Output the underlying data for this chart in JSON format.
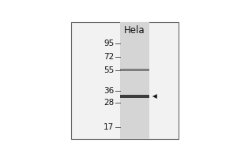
{
  "bg_color": "#ffffff",
  "outer_bg": "#f5f5f5",
  "lane_color_light": "#e0e0e0",
  "lane_color_dark": "#c8c8c8",
  "mw_markers": [
    95,
    72,
    55,
    36,
    28,
    17
  ],
  "lane_label": "Hela",
  "text_color": "#111111",
  "font_size": 7.5,
  "label_font_size": 8.5,
  "band_55_mw": 55,
  "band_32_mw": 32,
  "band_color_55": "#444444",
  "band_color_32": "#222222",
  "band_alpha_55": 0.6,
  "band_alpha_32": 0.85,
  "arrow_color": "#111111",
  "border_color": "#666666"
}
